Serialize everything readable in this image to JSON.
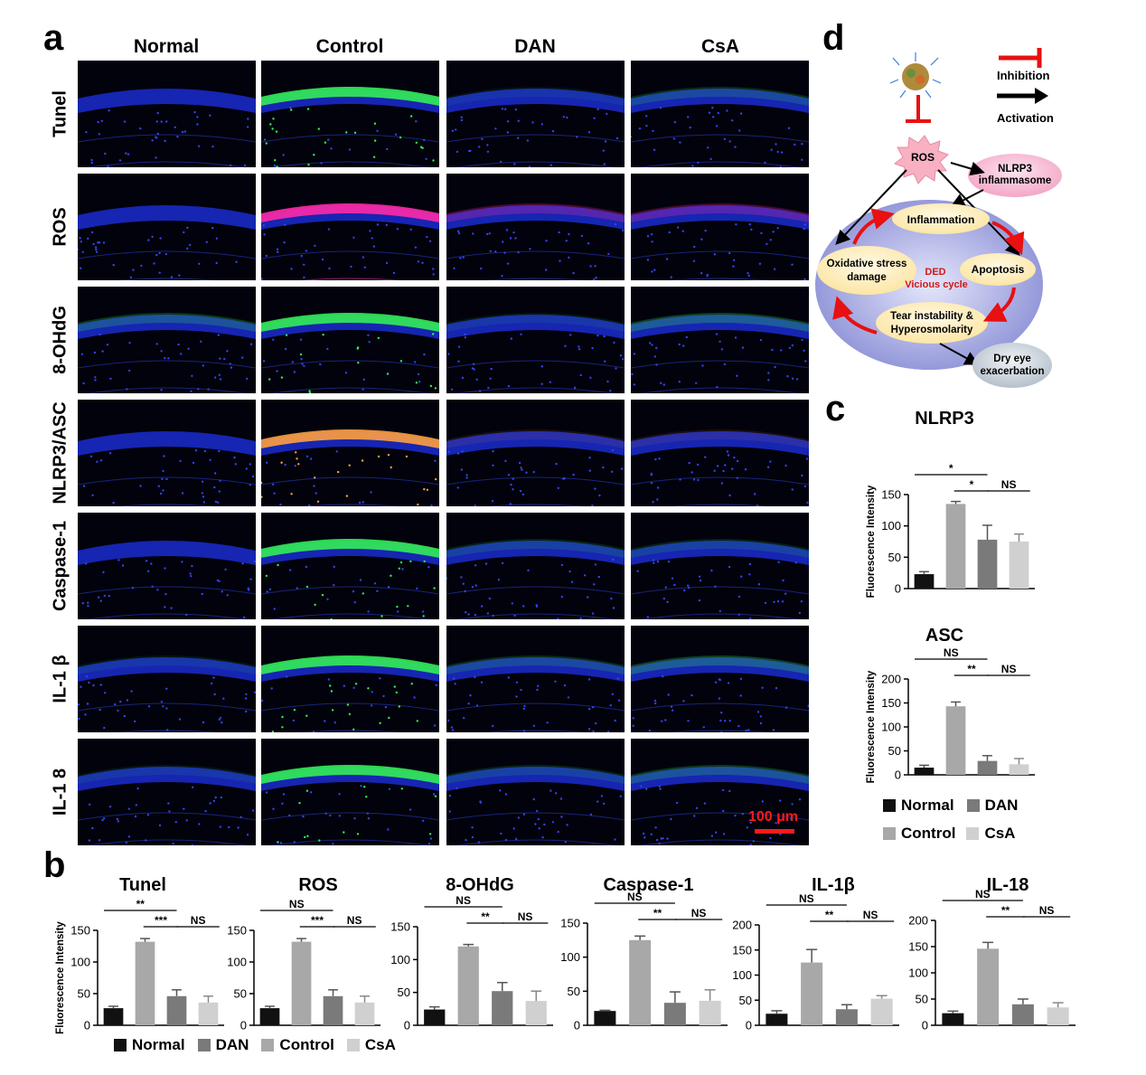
{
  "panels": {
    "a": "a",
    "b": "b",
    "c": "c",
    "d": "d"
  },
  "panel_a": {
    "columns": [
      "Normal",
      "Control",
      "DAN",
      "CsA"
    ],
    "rows": [
      "Tunel",
      "ROS",
      "8-OHdG",
      "NLRP3/ASC",
      "Caspase-1",
      "IL-1 β",
      "IL-1 8"
    ],
    "scale_bar": "100 μm",
    "colors": {
      "nuclei": "#2233ee",
      "green": "#33ee55",
      "magenta": "#ee2299",
      "orange": "#ff9933"
    }
  },
  "panel_b": {
    "y_label": "Fluorescence Intensity",
    "legend": [
      "Normal",
      "DAN",
      "Control",
      "CsA"
    ]
  },
  "panel_c": {
    "y_label": "Fluorescence Intensity",
    "legend": [
      "Normal",
      "DAN",
      "Control",
      "CsA"
    ]
  },
  "panel_d": {
    "legend_inhibition": "Inhibition",
    "legend_activation": "Activation",
    "ros": "ROS",
    "nlrp3": "NLRP3 inflammasome",
    "inflammation": "Inflammation",
    "oxidative": "Oxidative stress damage",
    "apoptosis": "Apoptosis",
    "tear": "Tear instability & Hyperosmolarity",
    "ded": "DED",
    "vicious": "Vicious cycle",
    "dry_eye": "Dry eye exacerbation"
  },
  "chart_data": [
    {
      "type": "bar",
      "title": "Tunel",
      "categories": [
        "Normal",
        "Control",
        "DAN",
        "CsA"
      ],
      "values": [
        27,
        132,
        46,
        36
      ],
      "errors": [
        3,
        5,
        10,
        10
      ],
      "ylim": [
        0,
        150
      ],
      "yticks": [
        0,
        50,
        100,
        150
      ],
      "ylabel": "Fluorescence Intensity",
      "colors": [
        "#111111",
        "#a8a8a8",
        "#7a7a7a",
        "#d0d0d0"
      ],
      "sig": [
        {
          "from": 0,
          "to": 2,
          "label": "**"
        },
        {
          "from": 1,
          "to": 2,
          "label": "***"
        },
        {
          "from": 2,
          "to": 3,
          "label": "NS"
        }
      ]
    },
    {
      "type": "bar",
      "title": "ROS",
      "categories": [
        "Normal",
        "Control",
        "DAN",
        "CsA"
      ],
      "values": [
        27,
        132,
        46,
        36
      ],
      "errors": [
        3,
        5,
        10,
        10
      ],
      "ylim": [
        0,
        150
      ],
      "yticks": [
        0,
        50,
        100,
        150
      ],
      "ylabel": "",
      "colors": [
        "#111111",
        "#a8a8a8",
        "#7a7a7a",
        "#d0d0d0"
      ],
      "sig": [
        {
          "from": 0,
          "to": 2,
          "label": "NS"
        },
        {
          "from": 1,
          "to": 2,
          "label": "***"
        },
        {
          "from": 2,
          "to": 3,
          "label": "NS"
        }
      ]
    },
    {
      "type": "bar",
      "title": "8-OHdG",
      "categories": [
        "Normal",
        "Control",
        "DAN",
        "CsA"
      ],
      "values": [
        24,
        120,
        52,
        37
      ],
      "errors": [
        4,
        3,
        13,
        15
      ],
      "ylim": [
        0,
        150
      ],
      "yticks": [
        0,
        50,
        100,
        150
      ],
      "ylabel": "",
      "colors": [
        "#111111",
        "#a8a8a8",
        "#7a7a7a",
        "#d0d0d0"
      ],
      "sig": [
        {
          "from": 0,
          "to": 2,
          "label": "NS"
        },
        {
          "from": 1,
          "to": 2,
          "label": "**"
        },
        {
          "from": 2,
          "to": 3,
          "label": "NS"
        }
      ]
    },
    {
      "type": "bar",
      "title": "Caspase-1",
      "categories": [
        "Normal",
        "Control",
        "DAN",
        "CsA"
      ],
      "values": [
        21,
        125,
        33,
        36
      ],
      "errors": [
        1,
        6,
        16,
        16
      ],
      "ylim": [
        0,
        150
      ],
      "yticks": [
        0,
        50,
        100,
        150
      ],
      "ylabel": "",
      "colors": [
        "#111111",
        "#a8a8a8",
        "#7a7a7a",
        "#d0d0d0"
      ],
      "sig": [
        {
          "from": 0,
          "to": 2,
          "label": "NS"
        },
        {
          "from": 1,
          "to": 2,
          "label": "**"
        },
        {
          "from": 2,
          "to": 3,
          "label": "NS"
        }
      ]
    },
    {
      "type": "bar",
      "title": "IL-1β",
      "categories": [
        "Normal",
        "Control",
        "DAN",
        "CsA"
      ],
      "values": [
        23,
        125,
        32,
        53
      ],
      "errors": [
        6,
        26,
        9,
        6
      ],
      "ylim": [
        0,
        200
      ],
      "yticks": [
        0,
        50,
        100,
        150,
        200
      ],
      "ylabel": "",
      "colors": [
        "#111111",
        "#a8a8a8",
        "#7a7a7a",
        "#d0d0d0"
      ],
      "sig": [
        {
          "from": 0,
          "to": 2,
          "label": "NS"
        },
        {
          "from": 1,
          "to": 2,
          "label": "**"
        },
        {
          "from": 2,
          "to": 3,
          "label": "NS"
        }
      ]
    },
    {
      "type": "bar",
      "title": "IL-18",
      "categories": [
        "Normal",
        "Control",
        "DAN",
        "CsA"
      ],
      "values": [
        23,
        146,
        40,
        34
      ],
      "errors": [
        4,
        12,
        10,
        9
      ],
      "ylim": [
        0,
        200
      ],
      "yticks": [
        0,
        50,
        100,
        150,
        200
      ],
      "ylabel": "",
      "colors": [
        "#111111",
        "#a8a8a8",
        "#7a7a7a",
        "#d0d0d0"
      ],
      "sig": [
        {
          "from": 0,
          "to": 2,
          "label": "NS"
        },
        {
          "from": 1,
          "to": 2,
          "label": "**"
        },
        {
          "from": 2,
          "to": 3,
          "label": "NS"
        }
      ]
    },
    {
      "type": "bar",
      "title": "NLRP3",
      "categories": [
        "Normal",
        "Control",
        "DAN",
        "CsA"
      ],
      "values": [
        23,
        135,
        78,
        75
      ],
      "errors": [
        4,
        4,
        23,
        12
      ],
      "ylim": [
        0,
        150
      ],
      "yticks": [
        0,
        50,
        100,
        150
      ],
      "ylabel": "Fluorescence Intensity",
      "colors": [
        "#111111",
        "#a8a8a8",
        "#7a7a7a",
        "#d0d0d0"
      ],
      "sig": [
        {
          "from": 0,
          "to": 2,
          "label": "*"
        },
        {
          "from": 1,
          "to": 2,
          "label": "*"
        },
        {
          "from": 2,
          "to": 3,
          "label": "NS"
        }
      ]
    },
    {
      "type": "bar",
      "title": "ASC",
      "categories": [
        "Normal",
        "Control",
        "DAN",
        "CsA"
      ],
      "values": [
        15,
        143,
        29,
        22
      ],
      "errors": [
        5,
        9,
        11,
        12
      ],
      "ylim": [
        0,
        200
      ],
      "yticks": [
        0,
        50,
        100,
        150,
        200
      ],
      "ylabel": "Fluorescence Intensity",
      "colors": [
        "#111111",
        "#a8a8a8",
        "#7a7a7a",
        "#d0d0d0"
      ],
      "sig": [
        {
          "from": 0,
          "to": 2,
          "label": "NS"
        },
        {
          "from": 1,
          "to": 2,
          "label": "**"
        },
        {
          "from": 2,
          "to": 3,
          "label": "NS"
        }
      ]
    }
  ]
}
